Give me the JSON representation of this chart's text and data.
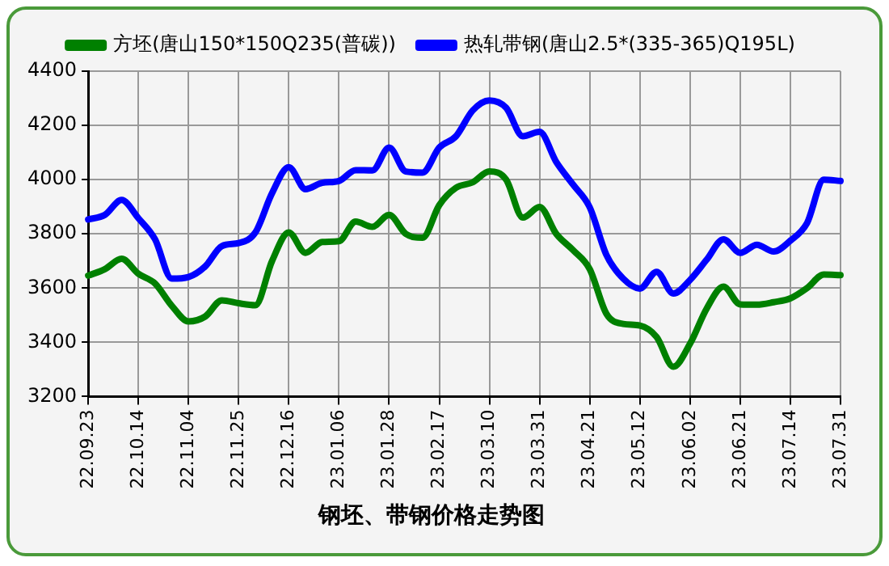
{
  "chart_data": {
    "type": "line",
    "title": "钢坯、带钢价格走势图",
    "categories": [
      "22.09.23",
      null,
      null,
      "22.10.14",
      null,
      null,
      "22.11.04",
      null,
      null,
      "22.11.25",
      null,
      null,
      "22.12.16",
      null,
      null,
      "23.01.06",
      null,
      null,
      "23.01.28",
      null,
      null,
      "23.02.17",
      null,
      null,
      "23.03.10",
      null,
      null,
      "23.03.31",
      null,
      null,
      "23.04.21",
      null,
      null,
      "23.05.12",
      null,
      null,
      "23.06.02",
      null,
      null,
      "23.06.21",
      null,
      null,
      "23.07.14",
      null,
      null,
      "23.07.31"
    ],
    "series": [
      {
        "name": "方坯(唐山150*150Q235(普碳))",
        "color": "#008000",
        "values": [
          3646,
          3670,
          3708,
          3653,
          3617,
          3535,
          3477,
          3495,
          3555,
          3544,
          3537,
          3700,
          3805,
          3730,
          3770,
          3773,
          3845,
          3826,
          3870,
          3800,
          3786,
          3906,
          3970,
          3990,
          4030,
          4000,
          3860,
          3899,
          3800,
          3740,
          3670,
          3505,
          3468,
          3462,
          3420,
          3310,
          3395,
          3525,
          3605,
          3540,
          3539,
          3548,
          3562,
          3600,
          3650,
          3648
        ]
      },
      {
        "name": "热轧带钢(唐山2.5*(335-365)Q195L)",
        "color": "#0000ff",
        "values": [
          3853,
          3870,
          3925,
          3858,
          3780,
          3635,
          3641,
          3680,
          3755,
          3766,
          3805,
          3950,
          4046,
          3965,
          3988,
          3995,
          4035,
          4034,
          4118,
          4030,
          4026,
          4118,
          4160,
          4255,
          4292,
          4265,
          4160,
          4176,
          4065,
          3982,
          3898,
          3722,
          3635,
          3598,
          3660,
          3580,
          3630,
          3705,
          3780,
          3730,
          3760,
          3735,
          3775,
          3840,
          4000,
          3995
        ]
      }
    ],
    "ylim": [
      3200,
      4400
    ],
    "yticks": [
      3200,
      3400,
      3600,
      3800,
      4000,
      4200,
      4400
    ],
    "grid": true,
    "legend": "top",
    "marker": "none",
    "line_style": "solid"
  }
}
